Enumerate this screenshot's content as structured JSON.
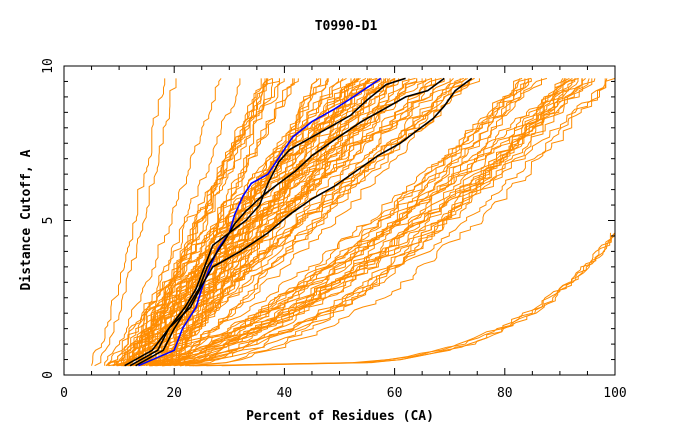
{
  "chart_data": {
    "type": "line",
    "title": "T0990-D1",
    "xlabel": "Percent of Residues (CA)",
    "ylabel": "Distance Cutoff, A",
    "xlim": [
      0,
      100
    ],
    "ylim": [
      0,
      10
    ],
    "x_ticks": [
      "0",
      "20",
      "40",
      "60",
      "80",
      "100"
    ],
    "y_ticks": [
      "0",
      "5",
      "10"
    ],
    "grid": false,
    "colors": {
      "orange": "#ff8c00",
      "blue": "#0000ff",
      "black": "#000000"
    },
    "highlight_series": [
      {
        "color": "#0000ff",
        "points": [
          [
            13.5,
            0.3
          ],
          [
            20,
            0.8
          ],
          [
            21.5,
            1.5
          ],
          [
            24,
            2.2
          ],
          [
            25,
            2.8
          ],
          [
            26.5,
            3.5
          ],
          [
            28,
            4.1
          ],
          [
            30,
            4.6
          ],
          [
            31,
            5.2
          ],
          [
            32.5,
            5.8
          ],
          [
            34,
            6.2
          ],
          [
            37,
            6.5
          ],
          [
            38.5,
            6.9
          ],
          [
            40,
            7.3
          ],
          [
            41.5,
            7.7
          ],
          [
            45,
            8.2
          ],
          [
            49,
            8.6
          ],
          [
            52.5,
            9.0
          ],
          [
            55,
            9.3
          ],
          [
            57.5,
            9.6
          ]
        ]
      },
      {
        "color": "#000000",
        "points": [
          [
            12,
            0.3
          ],
          [
            17,
            0.8
          ],
          [
            19,
            1.5
          ],
          [
            22,
            2.2
          ],
          [
            24,
            2.8
          ],
          [
            25.5,
            3.5
          ],
          [
            27,
            4.2
          ],
          [
            30,
            4.6
          ],
          [
            33,
            5.0
          ],
          [
            35.5,
            5.5
          ],
          [
            37,
            6.2
          ],
          [
            39,
            6.9
          ],
          [
            41,
            7.3
          ],
          [
            45,
            7.7
          ],
          [
            49,
            8.1
          ],
          [
            52,
            8.4
          ],
          [
            55,
            8.9
          ],
          [
            58.5,
            9.4
          ],
          [
            62,
            9.6
          ]
        ]
      },
      {
        "color": "#000000",
        "points": [
          [
            13,
            0.3
          ],
          [
            18,
            0.8
          ],
          [
            20,
            1.5
          ],
          [
            22.5,
            2.2
          ],
          [
            24.5,
            2.8
          ],
          [
            26,
            3.5
          ],
          [
            29,
            4.3
          ],
          [
            31,
            4.9
          ],
          [
            33,
            5.3
          ],
          [
            36,
            5.8
          ],
          [
            39,
            6.2
          ],
          [
            42,
            6.6
          ],
          [
            45,
            7.1
          ],
          [
            49,
            7.6
          ],
          [
            54,
            8.2
          ],
          [
            58,
            8.6
          ],
          [
            62,
            9.0
          ],
          [
            66,
            9.2
          ],
          [
            69,
            9.6
          ]
        ]
      },
      {
        "color": "#000000",
        "points": [
          [
            11,
            0.3
          ],
          [
            16,
            0.8
          ],
          [
            19,
            1.5
          ],
          [
            23,
            2.2
          ],
          [
            25,
            2.9
          ],
          [
            27,
            3.5
          ],
          [
            32,
            4.0
          ],
          [
            37,
            4.6
          ],
          [
            41,
            5.2
          ],
          [
            45,
            5.7
          ],
          [
            49,
            6.1
          ],
          [
            53,
            6.6
          ],
          [
            57,
            7.1
          ],
          [
            61,
            7.5
          ],
          [
            64,
            7.9
          ],
          [
            67,
            8.3
          ],
          [
            69,
            8.7
          ],
          [
            71,
            9.2
          ],
          [
            74,
            9.6
          ]
        ]
      }
    ]
  }
}
